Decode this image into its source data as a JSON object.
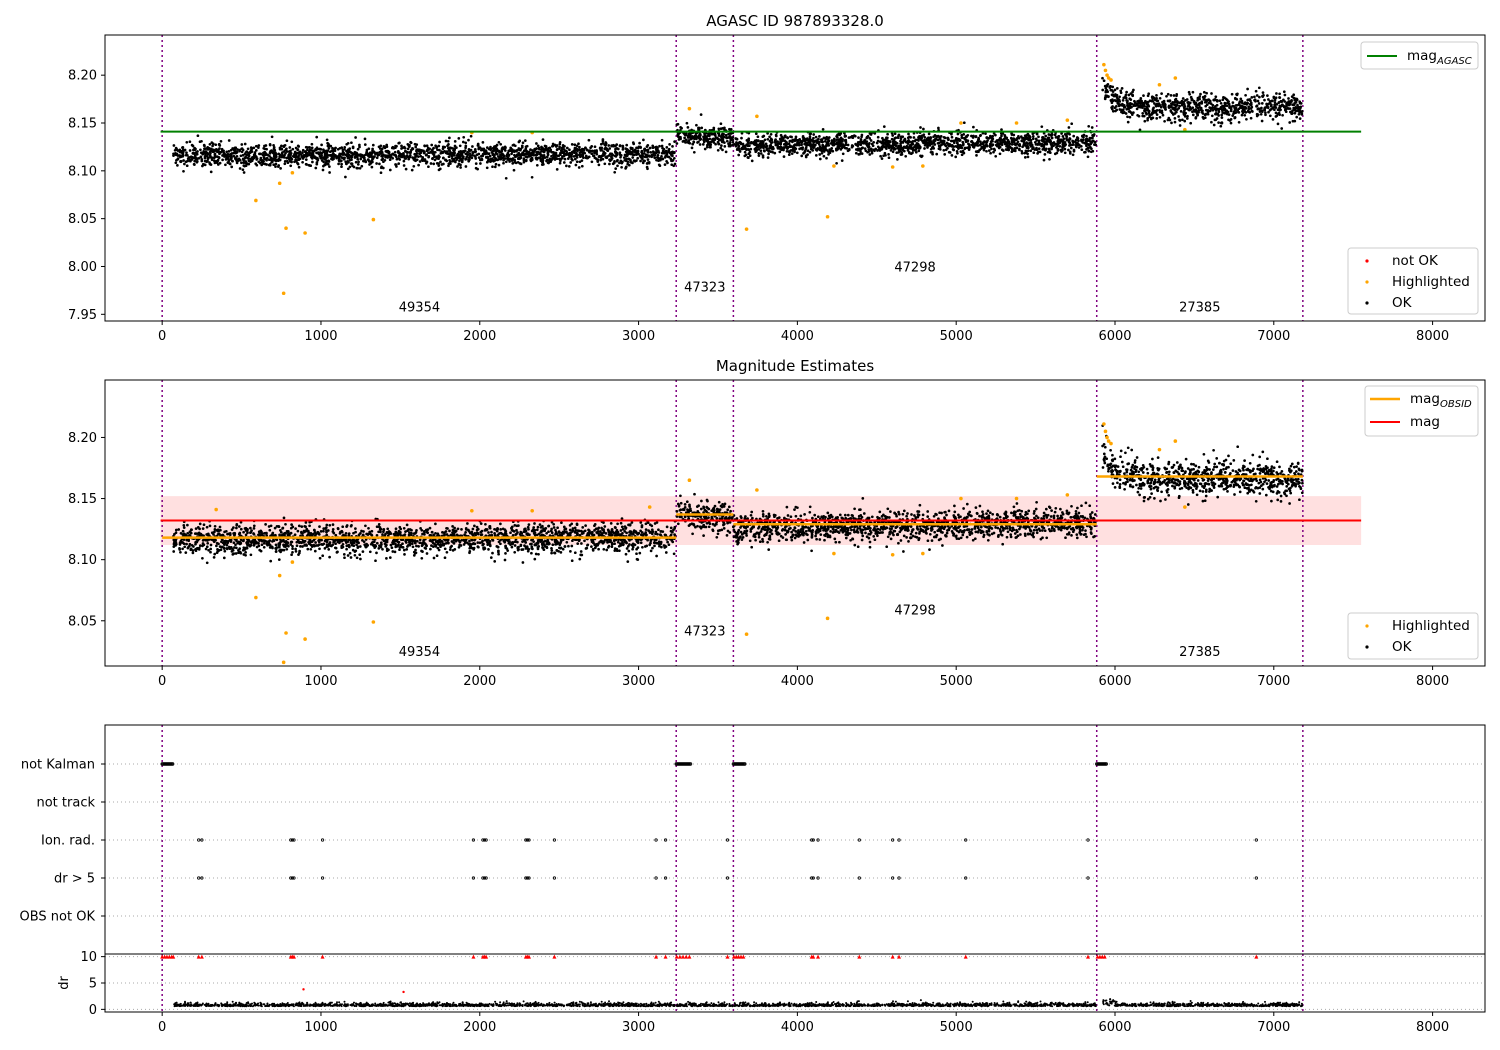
{
  "chart_data": [
    {
      "type": "scatter",
      "title": "AGASC ID 987893328.0",
      "xlim": [
        -360,
        8330
      ],
      "ylim": [
        7.943,
        8.242
      ],
      "xticks": [
        0,
        1000,
        2000,
        3000,
        4000,
        5000,
        6000,
        7000,
        8000
      ],
      "yticks": [
        7.95,
        8.0,
        8.05,
        8.1,
        8.15,
        8.2
      ],
      "ytick_labels": [
        "7.95",
        "8.00",
        "8.05",
        "8.10",
        "8.15",
        "8.20"
      ],
      "vlines": [
        0,
        3237,
        3597,
        5885,
        7183
      ],
      "obsid_labels": [
        {
          "x": 1620,
          "y": 7.953,
          "text": "49354"
        },
        {
          "x": 3417,
          "y": 7.974,
          "text": "47323"
        },
        {
          "x": 4741,
          "y": 7.995,
          "text": "47298"
        },
        {
          "x": 6534,
          "y": 7.953,
          "text": "27385"
        }
      ],
      "segments": [
        {
          "x0": 70,
          "x1": 3230,
          "mean": 8.117,
          "spread": 0.006,
          "trend": 0.002
        },
        {
          "x0": 3240,
          "x1": 3597,
          "mean": 8.136,
          "spread": 0.006,
          "trend": -0.004
        },
        {
          "x0": 3600,
          "x1": 5880,
          "mean": 8.128,
          "spread": 0.006,
          "trend": 0.004
        },
        {
          "x0": 5920,
          "x1": 7180,
          "mean": 8.166,
          "spread": 0.007,
          "trend": 0.0
        }
      ],
      "lines": [
        {
          "name": "mag$_{AGASC}$",
          "label_main": "mag",
          "label_sub": "AGASC",
          "y": 8.141,
          "x0": -10,
          "x1": 7550,
          "color": "#008000"
        }
      ],
      "highlighted": [
        [
          590,
          8.069
        ],
        [
          740,
          8.087
        ],
        [
          765,
          7.972
        ],
        [
          780,
          8.04
        ],
        [
          820,
          8.098
        ],
        [
          900,
          8.035
        ],
        [
          1330,
          8.049
        ],
        [
          1950,
          8.14
        ],
        [
          2330,
          8.14
        ],
        [
          3320,
          8.165
        ],
        [
          3680,
          8.039
        ],
        [
          3745,
          8.157
        ],
        [
          4190,
          8.052
        ],
        [
          4230,
          8.105
        ],
        [
          4600,
          8.104
        ],
        [
          4790,
          8.105
        ],
        [
          5030,
          8.15
        ],
        [
          5380,
          8.15
        ],
        [
          5700,
          8.153
        ],
        [
          5930,
          8.211
        ],
        [
          5940,
          8.205
        ],
        [
          5950,
          8.2
        ],
        [
          5960,
          8.197
        ],
        [
          5975,
          8.195
        ],
        [
          6380,
          8.197
        ],
        [
          6440,
          8.143
        ],
        [
          6280,
          8.19
        ]
      ],
      "legend": {
        "position": "top-right",
        "entries": [
          "mag$_{AGASC}$"
        ]
      },
      "legend2": {
        "position": "lower-right",
        "entries": [
          "not OK",
          "Highlighted",
          "OK"
        ]
      },
      "series_colors": {
        "ok": "#000000",
        "highlighted": "#FFA500",
        "not_ok": "#FF0000"
      }
    },
    {
      "type": "scatter",
      "title": "Magnitude Estimates",
      "xlim": [
        -360,
        8330
      ],
      "ylim": [
        8.013,
        8.247
      ],
      "xticks": [
        0,
        1000,
        2000,
        3000,
        4000,
        5000,
        6000,
        7000,
        8000
      ],
      "yticks": [
        8.05,
        8.1,
        8.15,
        8.2
      ],
      "ytick_labels": [
        "8.05",
        "8.10",
        "8.15",
        "8.20"
      ],
      "vlines": [
        0,
        3237,
        3597,
        5885,
        7183
      ],
      "obsid_labels": [
        {
          "x": 1620,
          "y": 8.021,
          "text": "49354"
        },
        {
          "x": 3417,
          "y": 8.038,
          "text": "47323"
        },
        {
          "x": 4741,
          "y": 8.055,
          "text": "47298"
        },
        {
          "x": 6534,
          "y": 8.021,
          "text": "27385"
        }
      ],
      "band": {
        "y0": 8.112,
        "y1": 8.152,
        "x0": -10,
        "x1": 7550,
        "color": "#FFDDDD"
      },
      "mag_line": {
        "y": 8.132,
        "x0": -10,
        "x1": 7550,
        "color": "#FF0000"
      },
      "obsid_means": [
        {
          "x0": 0,
          "x1": 3237,
          "y": 8.118
        },
        {
          "x0": 3237,
          "x1": 3597,
          "y": 8.137
        },
        {
          "x0": 3597,
          "x1": 5885,
          "y": 8.129
        },
        {
          "x0": 5885,
          "x1": 7183,
          "y": 8.168
        }
      ],
      "segments": [
        {
          "x0": 70,
          "x1": 3230,
          "mean": 8.117,
          "spread": 0.006,
          "trend": 0.002
        },
        {
          "x0": 3240,
          "x1": 3597,
          "mean": 8.136,
          "spread": 0.006,
          "trend": -0.004
        },
        {
          "x0": 3600,
          "x1": 5880,
          "mean": 8.128,
          "spread": 0.006,
          "trend": 0.004
        },
        {
          "x0": 5920,
          "x1": 7180,
          "mean": 8.166,
          "spread": 0.007,
          "trend": 0.0
        }
      ],
      "highlighted": [
        [
          340,
          8.141
        ],
        [
          590,
          8.069
        ],
        [
          740,
          8.087
        ],
        [
          765,
          8.016
        ],
        [
          780,
          8.04
        ],
        [
          820,
          8.098
        ],
        [
          900,
          8.035
        ],
        [
          1330,
          8.049
        ],
        [
          1950,
          8.14
        ],
        [
          2330,
          8.14
        ],
        [
          3070,
          8.143
        ],
        [
          3320,
          8.165
        ],
        [
          3680,
          8.039
        ],
        [
          3745,
          8.157
        ],
        [
          4190,
          8.052
        ],
        [
          4230,
          8.105
        ],
        [
          4600,
          8.104
        ],
        [
          4790,
          8.105
        ],
        [
          5030,
          8.15
        ],
        [
          5380,
          8.15
        ],
        [
          5700,
          8.153
        ],
        [
          5930,
          8.211
        ],
        [
          5940,
          8.205
        ],
        [
          5950,
          8.2
        ],
        [
          5960,
          8.197
        ],
        [
          5975,
          8.195
        ],
        [
          6380,
          8.197
        ],
        [
          6440,
          8.143
        ],
        [
          6280,
          8.19
        ]
      ],
      "legend": {
        "position": "top-right",
        "entries": [
          {
            "label_main": "mag",
            "label_sub": "OBSID",
            "color": "#FFA500"
          },
          {
            "label_main": "mag",
            "label_sub": "",
            "color": "#FF0000"
          }
        ]
      },
      "legend2": {
        "position": "lower-right",
        "entries": [
          "Highlighted",
          "OK"
        ]
      },
      "series_colors": {
        "ok": "#000000",
        "highlighted": "#FFA500",
        "mean": "#FFA500"
      }
    },
    {
      "type": "scatter",
      "title": "",
      "xlim": [
        -360,
        8330
      ],
      "categories": [
        "not Kalman",
        "not track",
        "Ion. rad.",
        "dr > 5",
        "OBS not OK"
      ],
      "vlines": [
        0,
        3237,
        3597,
        5885,
        7183
      ],
      "not_kalman_ranges": [
        [
          0,
          70
        ],
        [
          3237,
          3330
        ],
        [
          3597,
          3670
        ],
        [
          5885,
          5945
        ]
      ],
      "ion_rad_x": [
        230,
        250,
        810,
        820,
        830,
        1010,
        1960,
        2020,
        2030,
        2040,
        2290,
        2300,
        2310,
        2470,
        3110,
        3170,
        3560,
        4090,
        4100,
        4130,
        4390,
        4600,
        4640,
        5060,
        5830,
        6890
      ],
      "dr_gt_5_x": [
        230,
        250,
        810,
        820,
        830,
        1010,
        1960,
        2020,
        2030,
        2040,
        2290,
        2300,
        2310,
        2470,
        3110,
        3170,
        3560,
        4090,
        4100,
        4130,
        4390,
        4600,
        4640,
        5060,
        5830,
        6890
      ]
    },
    {
      "type": "scatter",
      "ylabel": "dr",
      "xlim": [
        -360,
        8330
      ],
      "ylim": [
        -0.5,
        10.5
      ],
      "xticks": [
        0,
        1000,
        2000,
        3000,
        4000,
        5000,
        6000,
        7000,
        8000
      ],
      "yticks": [
        0,
        5,
        10
      ],
      "ytick_labels": [
        "0",
        "5",
        "10"
      ],
      "vlines": [
        0,
        3237,
        3597,
        5885,
        7183
      ],
      "red_markers_x": [
        0,
        15,
        30,
        45,
        60,
        70,
        230,
        250,
        810,
        820,
        830,
        1010,
        1960,
        2020,
        2030,
        2040,
        2290,
        2300,
        2310,
        2470,
        3110,
        3170,
        3240,
        3260,
        3280,
        3300,
        3320,
        3560,
        3600,
        3615,
        3630,
        3645,
        3660,
        4090,
        4100,
        4130,
        4390,
        4600,
        4640,
        5060,
        5830,
        5890,
        5905,
        5920,
        5935,
        6890
      ],
      "red_points": [
        [
          890,
          3.8
        ],
        [
          1520,
          3.3
        ]
      ],
      "ok_segments": [
        [
          70,
          3230
        ],
        [
          3240,
          3597
        ],
        [
          3600,
          5880
        ],
        [
          5920,
          7180
        ]
      ],
      "series_colors": {
        "ok": "#000000",
        "flagged": "#FF0000"
      }
    }
  ]
}
